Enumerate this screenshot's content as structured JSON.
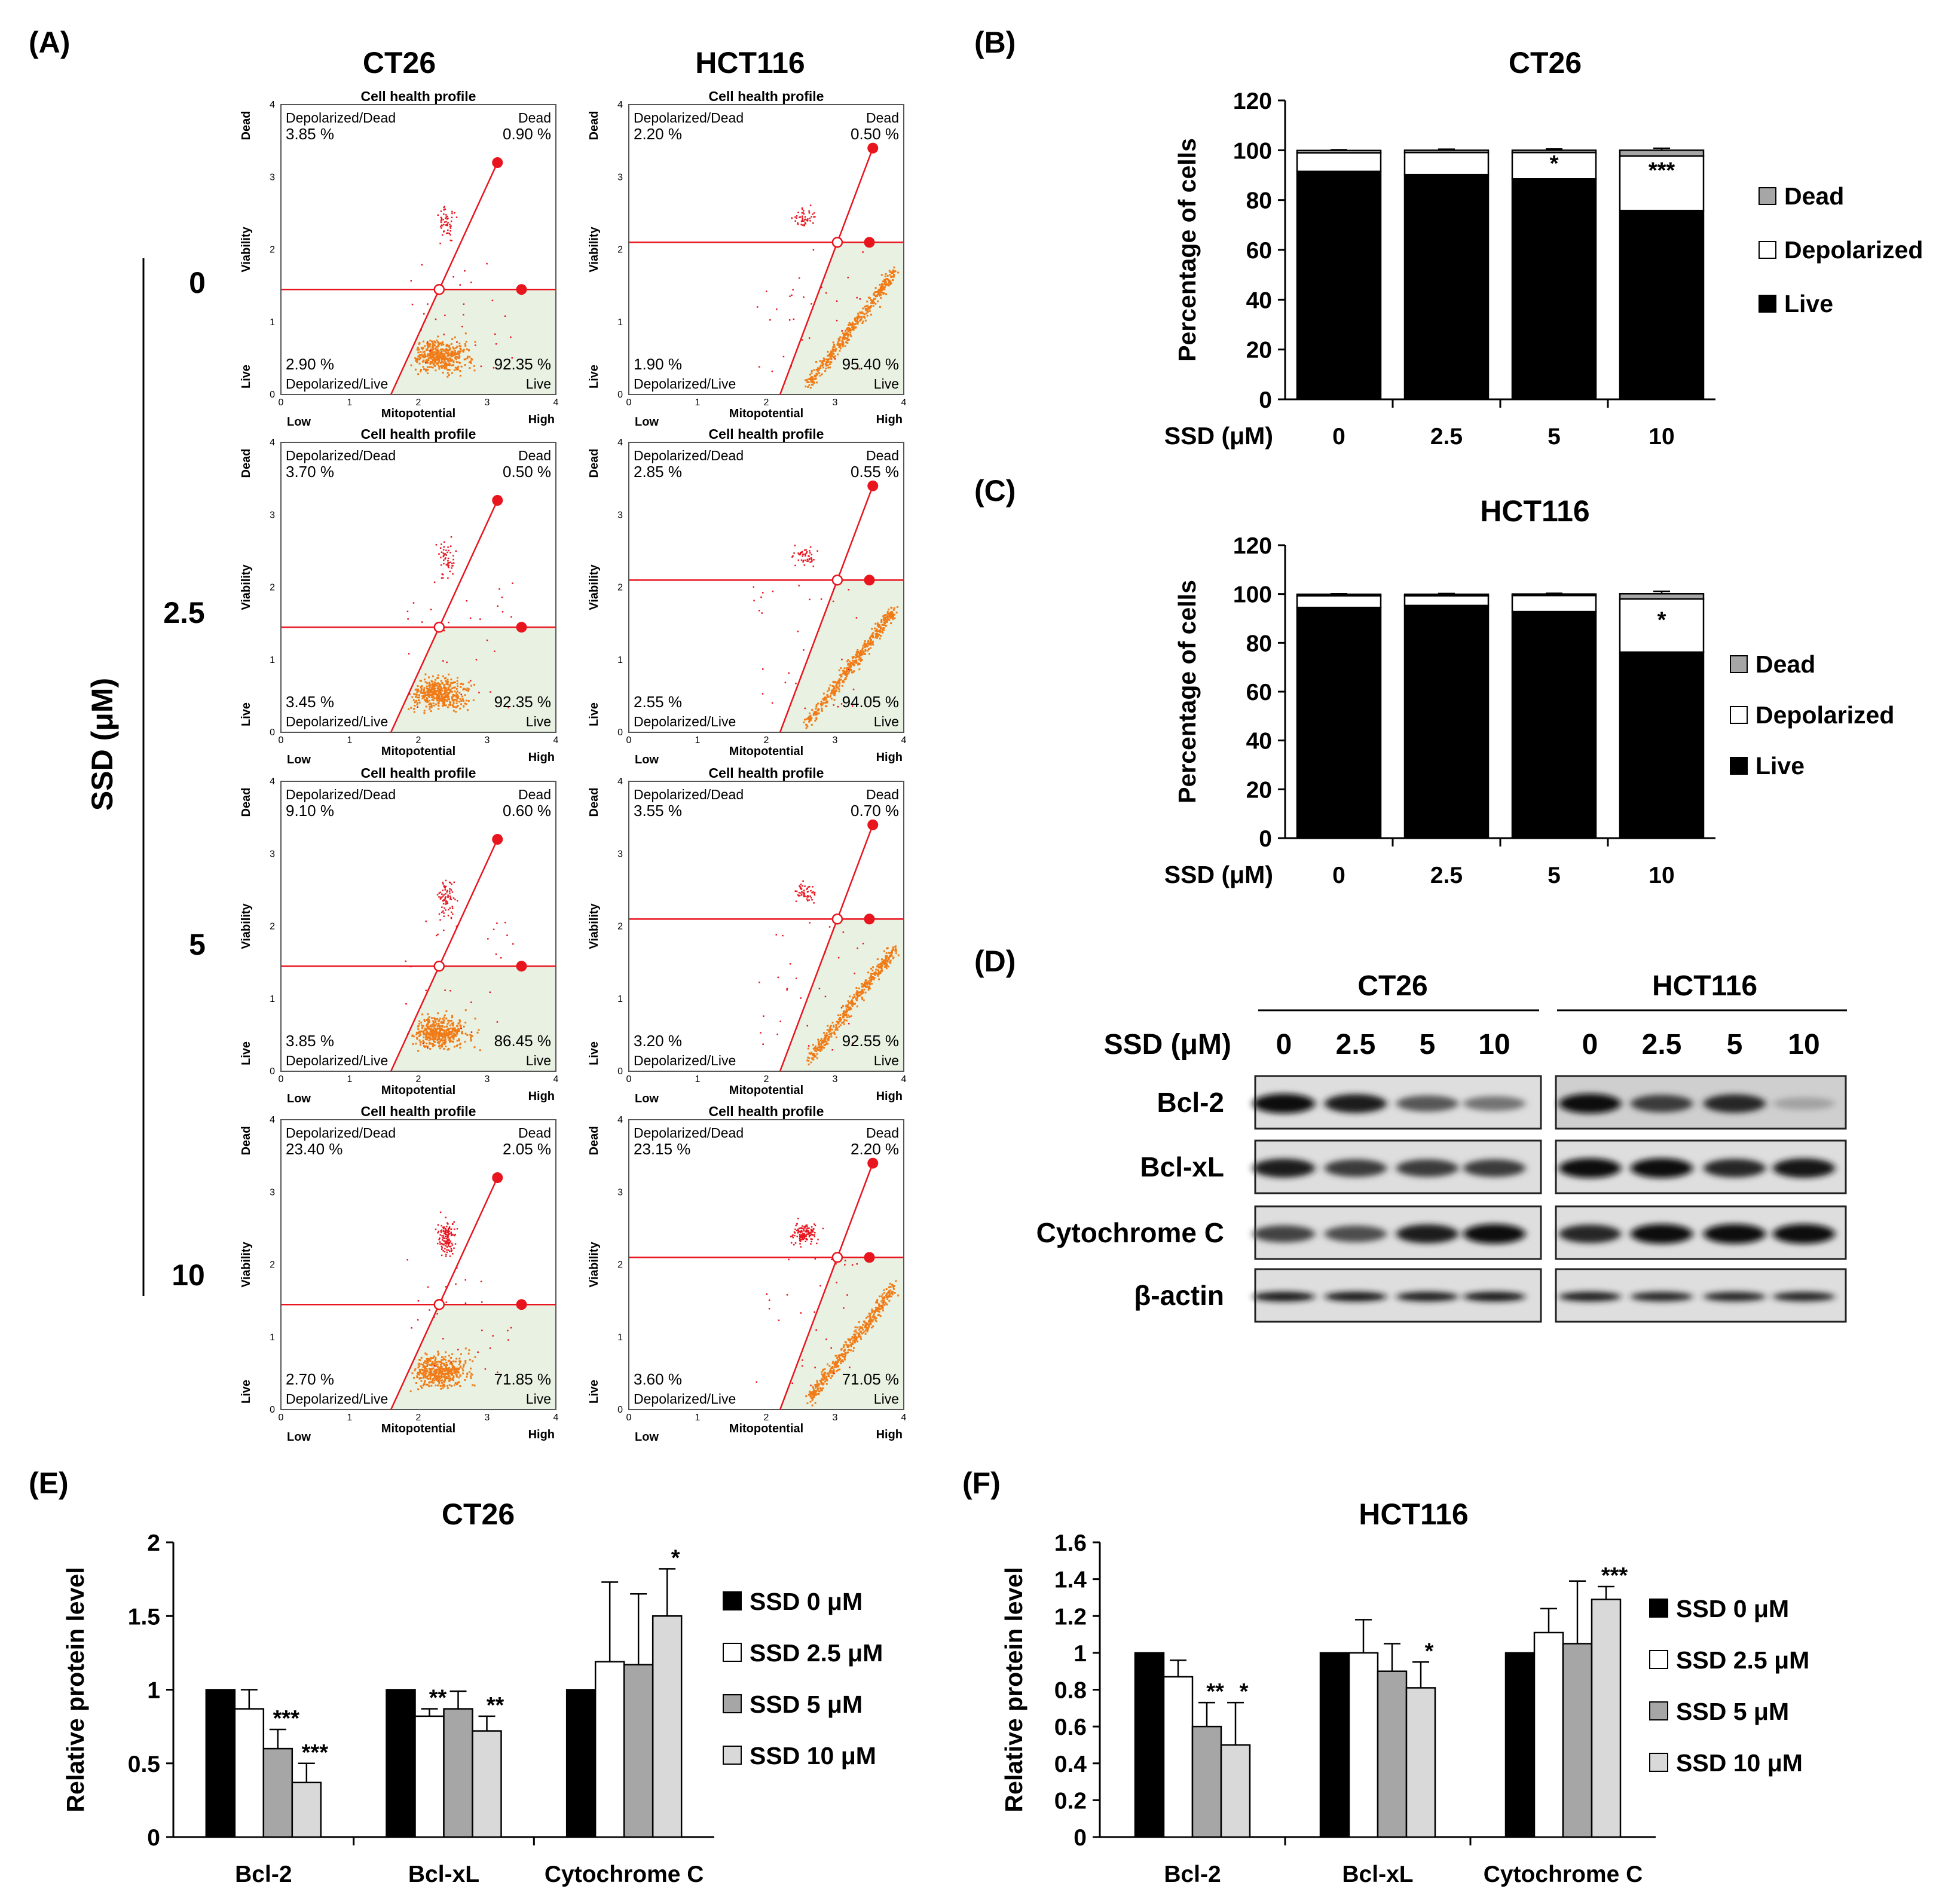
{
  "figure": {
    "panel_labels": {
      "A": "(A)",
      "B": "(B)",
      "C": "(C)",
      "D": "(D)",
      "E": "(E)",
      "F": "(F)"
    }
  },
  "flow": {
    "columns": [
      "CT26",
      "HCT116"
    ],
    "row_values": [
      "0",
      "2.5",
      "5",
      "10"
    ],
    "axis_label": "SSD (μM)",
    "panel_title": "Cell health profile",
    "x_label": "Mitopotential",
    "x_low": "Low",
    "x_high": "High",
    "y_label": "Viability",
    "y_top": "Dead",
    "y_bottom": "Live",
    "quad_labels": {
      "tl": "Depolarized/Dead",
      "tr": "Dead",
      "bl": "Depolarized/Live",
      "br": "Live"
    },
    "ticks": [
      "0",
      "1",
      "2",
      "3",
      "4"
    ],
    "marker_color": "#e8141e",
    "dot_color": "#f07b17",
    "gate_fill": "#e9f2e2",
    "panels": [
      [
        {
          "tl": "3.85 %",
          "tr": "0.90 %",
          "bl": "2.90 %",
          "br": "92.35 %",
          "hline": 1.45,
          "x0": 1.6,
          "x1": 3.15,
          "y1": 3.2
        },
        {
          "tl": "2.20 %",
          "tr": "0.50 %",
          "bl": "1.90 %",
          "br": "95.40 %",
          "hline": 2.1,
          "x0": 2.2,
          "x1": 3.55,
          "y1": 3.4
        }
      ],
      [
        {
          "tl": "3.70 %",
          "tr": "0.50 %",
          "bl": "3.45 %",
          "br": "92.35 %",
          "hline": 1.45,
          "x0": 1.6,
          "x1": 3.15,
          "y1": 3.2
        },
        {
          "tl": "2.85 %",
          "tr": "0.55 %",
          "bl": "2.55 %",
          "br": "94.05 %",
          "hline": 2.1,
          "x0": 2.2,
          "x1": 3.55,
          "y1": 3.4
        }
      ],
      [
        {
          "tl": "9.10 %",
          "tr": "0.60 %",
          "bl": "3.85 %",
          "br": "86.45 %",
          "hline": 1.45,
          "x0": 1.6,
          "x1": 3.15,
          "y1": 3.2
        },
        {
          "tl": "3.55 %",
          "tr": "0.70 %",
          "bl": "3.20 %",
          "br": "92.55 %",
          "hline": 2.1,
          "x0": 2.2,
          "x1": 3.55,
          "y1": 3.4
        }
      ],
      [
        {
          "tl": "23.40 %",
          "tr": "2.05 %",
          "bl": "2.70 %",
          "br": "71.85 %",
          "hline": 1.45,
          "x0": 1.6,
          "x1": 3.15,
          "y1": 3.2
        },
        {
          "tl": "23.15 %",
          "tr": "2.20 %",
          "bl": "3.60 %",
          "br": "71.05 %",
          "hline": 2.1,
          "x0": 2.2,
          "x1": 3.55,
          "y1": 3.4
        }
      ]
    ]
  },
  "chart_data": [
    {
      "id": "B",
      "type": "bar",
      "stacked": true,
      "title": "CT26",
      "xlabel": "SSD (μM)",
      "ylabel": "Percentage of cells",
      "categories": [
        "0",
        "2.5",
        "5",
        "10"
      ],
      "ylim": [
        0,
        120
      ],
      "yticks": [
        "0",
        "20",
        "40",
        "60",
        "80",
        "100",
        "120"
      ],
      "series": [
        {
          "name": "Live",
          "color": "#000000",
          "values": [
            91.5,
            90.2,
            88.5,
            75.8
          ],
          "errors": [
            0.8,
            2.4,
            1.5,
            2.8
          ]
        },
        {
          "name": "Depolarized",
          "color": "#ffffff",
          "values": [
            7.5,
            8.9,
            10.6,
            21.9
          ],
          "errors": [
            0.5,
            0.6,
            0.8,
            0.6
          ]
        },
        {
          "name": "Dead",
          "color": "#a6a6a6",
          "values": [
            0.9,
            0.9,
            0.9,
            2.3
          ],
          "errors": [
            0.3,
            0.4,
            0.5,
            0.8
          ]
        }
      ],
      "annotations": [
        {
          "category": "5",
          "text": "*"
        },
        {
          "category": "10",
          "text": "***"
        }
      ],
      "legend": "right"
    },
    {
      "id": "C",
      "type": "bar",
      "stacked": true,
      "title": "HCT116",
      "xlabel": "SSD (μM)",
      "ylabel": "Percentage of cells",
      "categories": [
        "0",
        "2.5",
        "5",
        "10"
      ],
      "ylim": [
        0,
        120
      ],
      "yticks": [
        "0",
        "20",
        "40",
        "60",
        "80",
        "100",
        "120"
      ],
      "series": [
        {
          "name": "Live",
          "color": "#000000",
          "values": [
            94.5,
            95.3,
            92.8,
            76.2
          ],
          "errors": [
            0.8,
            1.0,
            0.9,
            4.8
          ]
        },
        {
          "name": "Depolarized",
          "color": "#ffffff",
          "values": [
            4.8,
            4.0,
            6.6,
            21.8
          ],
          "errors": [
            0.4,
            0.4,
            0.5,
            0.5
          ]
        },
        {
          "name": "Dead",
          "color": "#a6a6a6",
          "values": [
            0.6,
            0.6,
            0.6,
            2.1
          ],
          "errors": [
            0.2,
            0.3,
            0.3,
            1.0
          ]
        }
      ],
      "annotations": [
        {
          "category": "10",
          "text": "*"
        }
      ],
      "legend": "right"
    },
    {
      "id": "E",
      "type": "bar",
      "title": "CT26",
      "xlabel": "",
      "ylabel": "Relative protein level",
      "categories": [
        "Bcl-2",
        "Bcl-xL",
        "Cytochrome C"
      ],
      "ylim": [
        0,
        2
      ],
      "yticks": [
        "0",
        "0.5",
        "1",
        "1.5",
        "2"
      ],
      "series": [
        {
          "name": "SSD 0 μM",
          "color": "#000000",
          "values": [
            1.0,
            1.0,
            1.0
          ],
          "errors": [
            0,
            0,
            0
          ],
          "stars": [
            "",
            "",
            ""
          ]
        },
        {
          "name": "SSD 2.5 μM",
          "color": "#ffffff",
          "values": [
            0.87,
            0.82,
            1.19
          ],
          "errors": [
            0.13,
            0.05,
            0.54
          ],
          "stars": [
            "",
            "**",
            ""
          ]
        },
        {
          "name": "SSD 5 μM",
          "color": "#a6a6a6",
          "values": [
            0.6,
            0.87,
            1.17
          ],
          "errors": [
            0.13,
            0.12,
            0.48
          ],
          "stars": [
            "***",
            "",
            ""
          ]
        },
        {
          "name": "SSD 10 μM",
          "color": "#d9d9d9",
          "values": [
            0.37,
            0.72,
            1.5
          ],
          "errors": [
            0.13,
            0.1,
            0.32
          ],
          "stars": [
            "***",
            "**",
            "*"
          ]
        }
      ],
      "legend": "right"
    },
    {
      "id": "F",
      "type": "bar",
      "title": "HCT116",
      "xlabel": "",
      "ylabel": "Relative protein level",
      "categories": [
        "Bcl-2",
        "Bcl-xL",
        "Cytochrome C"
      ],
      "ylim": [
        0,
        1.6
      ],
      "yticks": [
        "0",
        "0.2",
        "0.4",
        "0.6",
        "0.8",
        "1",
        "1.2",
        "1.4",
        "1.6"
      ],
      "series": [
        {
          "name": "SSD 0 μM",
          "color": "#000000",
          "values": [
            1.0,
            1.0,
            1.0
          ],
          "errors": [
            0,
            0,
            0
          ],
          "stars": [
            "",
            "",
            ""
          ]
        },
        {
          "name": "SSD 2.5 μM",
          "color": "#ffffff",
          "values": [
            0.87,
            1.0,
            1.11
          ],
          "errors": [
            0.09,
            0.18,
            0.13
          ],
          "stars": [
            "",
            "",
            ""
          ]
        },
        {
          "name": "SSD 5 μM",
          "color": "#a6a6a6",
          "values": [
            0.6,
            0.9,
            1.05
          ],
          "errors": [
            0.13,
            0.15,
            0.34
          ],
          "stars": [
            "**",
            "",
            ""
          ]
        },
        {
          "name": "SSD 10 μM",
          "color": "#d9d9d9",
          "values": [
            0.5,
            0.81,
            1.29
          ],
          "errors": [
            0.23,
            0.14,
            0.07
          ],
          "stars": [
            "*",
            "*",
            "***"
          ]
        }
      ],
      "legend": "right"
    }
  ],
  "western": {
    "groups": [
      "CT26",
      "HCT116"
    ],
    "treatment_label": "SSD  (μM)",
    "doses": [
      "0",
      "2.5",
      "5",
      "10"
    ],
    "proteins": [
      "Bcl-2",
      "Bcl-xL",
      "Cytochrome C",
      "β-actin"
    ],
    "band_intensity": {
      "Bcl-2": [
        [
          1.0,
          0.9,
          0.6,
          0.45
        ],
        [
          1.0,
          0.75,
          0.85,
          0.2
        ]
      ],
      "Bcl-xL": [
        [
          0.9,
          0.75,
          0.75,
          0.75
        ],
        [
          1.0,
          1.0,
          0.85,
          0.95
        ]
      ],
      "Cytochrome C": [
        [
          0.7,
          0.65,
          0.9,
          1.0
        ],
        [
          0.85,
          1.0,
          1.0,
          1.0
        ]
      ],
      "β-actin": [
        [
          0.95,
          0.95,
          0.9,
          0.95
        ],
        [
          0.9,
          0.85,
          0.85,
          0.85
        ]
      ]
    }
  }
}
